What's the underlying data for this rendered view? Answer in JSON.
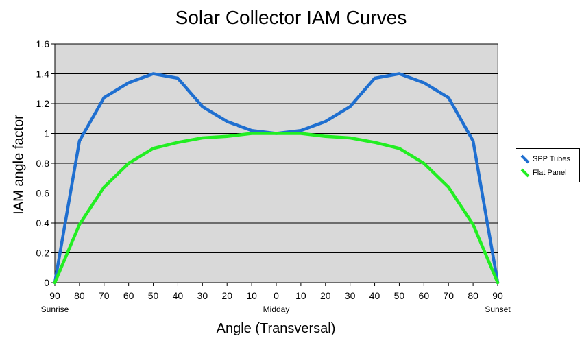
{
  "chart_data": {
    "type": "line",
    "title": "Solar Collector IAM Curves",
    "xlabel": "Angle (Transversal)",
    "ylabel": "IAM angle factor",
    "categories": [
      "90",
      "80",
      "70",
      "60",
      "50",
      "40",
      "30",
      "20",
      "10",
      "0",
      "10",
      "20",
      "30",
      "40",
      "50",
      "60",
      "70",
      "80",
      "90"
    ],
    "category_sublabels": {
      "first": "Sunrise",
      "middle": "Midday",
      "last": "Sunset"
    },
    "yticks": [
      "0",
      "0.2",
      "0.4",
      "0.6",
      "0.8",
      "1",
      "1.2",
      "1.4",
      "1.6"
    ],
    "ylim": [
      0,
      1.6
    ],
    "grid": true,
    "legend_position": "right",
    "series": [
      {
        "name": "SPP Tubes",
        "color": "#1f6fd0",
        "values": [
          0,
          0.95,
          1.24,
          1.34,
          1.4,
          1.37,
          1.18,
          1.08,
          1.02,
          1.0,
          1.02,
          1.08,
          1.18,
          1.37,
          1.4,
          1.34,
          1.24,
          0.95,
          0
        ]
      },
      {
        "name": "Flat Panel",
        "color": "#22ee22",
        "values": [
          0,
          0.39,
          0.64,
          0.8,
          0.9,
          0.94,
          0.97,
          0.98,
          1.0,
          1.0,
          1.0,
          0.98,
          0.97,
          0.94,
          0.9,
          0.8,
          0.64,
          0.39,
          0
        ]
      }
    ],
    "plot_background": "#d9d9d9"
  }
}
